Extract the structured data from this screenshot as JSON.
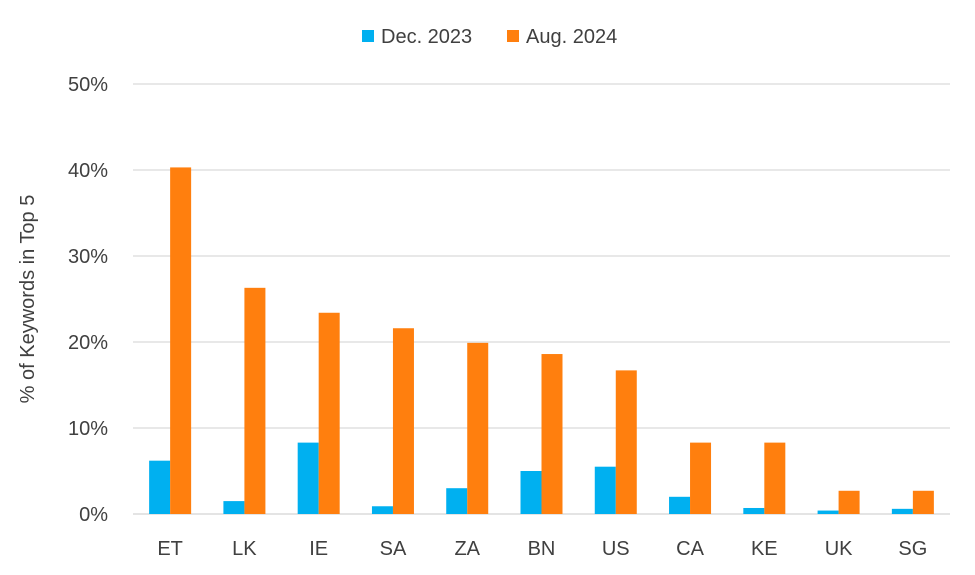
{
  "chart_data": {
    "type": "bar",
    "categories": [
      "ET",
      "LK",
      "IE",
      "SA",
      "ZA",
      "BN",
      "US",
      "CA",
      "KE",
      "UK",
      "SG"
    ],
    "series": [
      {
        "name": "Dec. 2023",
        "color": "#00B0F0",
        "values": [
          6.2,
          1.5,
          8.3,
          0.9,
          3.0,
          5.0,
          5.5,
          2.0,
          0.7,
          0.4,
          0.6
        ]
      },
      {
        "name": "Aug. 2024",
        "color": "#FF7F0E",
        "values": [
          40.3,
          26.3,
          23.4,
          21.6,
          19.9,
          18.6,
          16.7,
          8.3,
          8.3,
          2.7,
          2.7
        ]
      }
    ],
    "ylabel": "%  of Keywords in Top 5",
    "ylim": [
      0,
      50
    ],
    "yticks": [
      "0%",
      "10%",
      "20%",
      "30%",
      "40%",
      "50%"
    ],
    "grid": true,
    "legend_position": "top-center"
  }
}
